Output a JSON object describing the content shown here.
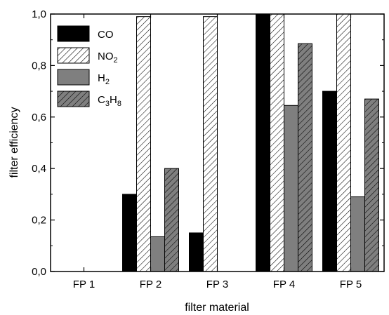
{
  "chart_data": {
    "type": "bar",
    "title": "",
    "xlabel": "filter material",
    "ylabel": "filter efficiency",
    "ylim": [
      0,
      1.0
    ],
    "yticks": [
      "0,0",
      "0,2",
      "0,4",
      "0,6",
      "0,8",
      "1,0"
    ],
    "categories": [
      "FP 1",
      "FP 2",
      "FP 3",
      "FP 4",
      "FP 5"
    ],
    "series": [
      {
        "name": "CO",
        "legend": {
          "main": "CO",
          "sub": ""
        },
        "fill": "solid",
        "color": "#000000",
        "values": [
          0,
          0.3,
          0.15,
          1.0,
          0.7
        ]
      },
      {
        "name": "NO2",
        "legend": {
          "main": "NO",
          "sub": "2"
        },
        "fill": "hatch-light",
        "color": "#ffffff",
        "values": [
          0,
          0.99,
          0.99,
          1.0,
          1.0
        ]
      },
      {
        "name": "H2",
        "legend": {
          "main": "H",
          "sub": "2"
        },
        "fill": "solid",
        "color": "#7f7f7f",
        "values": [
          0,
          0.135,
          0,
          0.645,
          0.29
        ]
      },
      {
        "name": "C3H8",
        "legend": {
          "main": "C",
          "sub": "3",
          "main2": "H",
          "sub2": "8"
        },
        "fill": "hatch-dark",
        "color": "#7f7f7f",
        "values": [
          0,
          0.4,
          0,
          0.885,
          0.67
        ]
      }
    ],
    "legend_position": "top-left",
    "grid": false
  }
}
